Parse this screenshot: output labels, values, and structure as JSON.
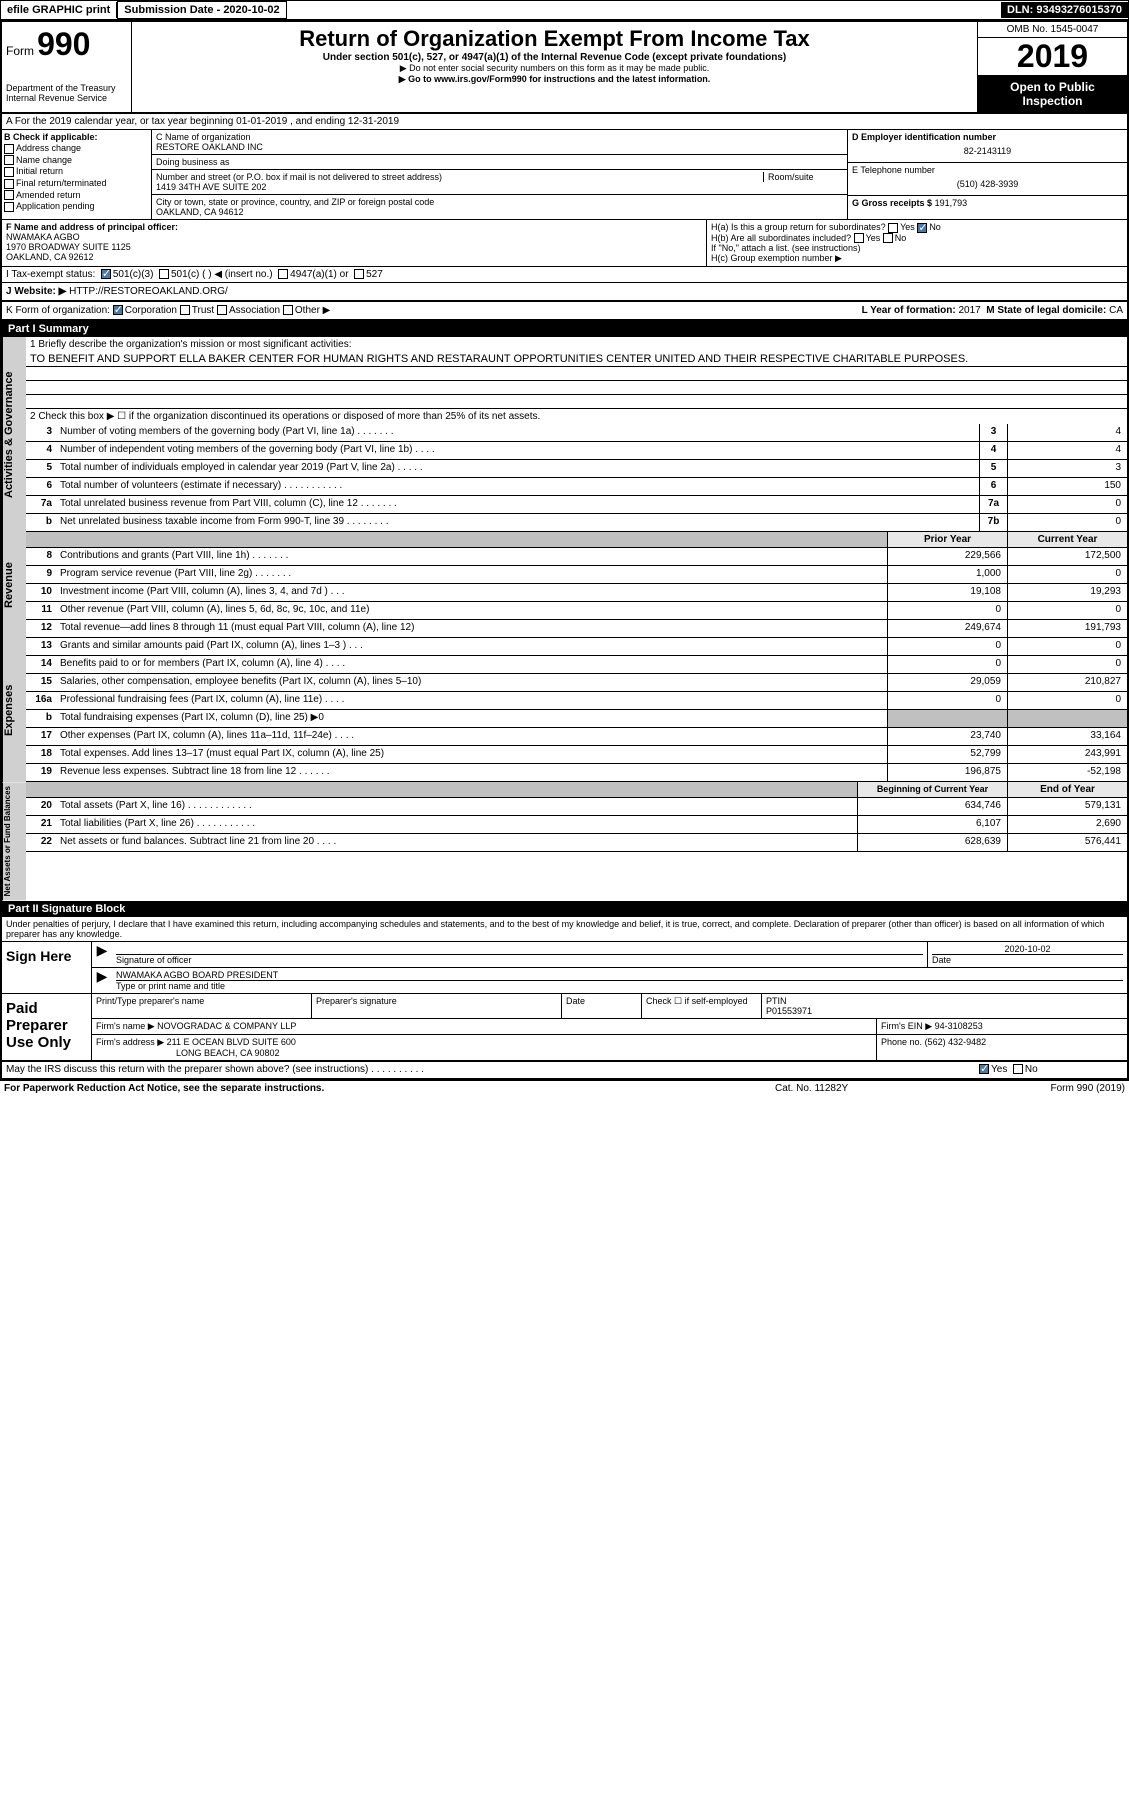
{
  "top": {
    "efile": "efile GRAPHIC print",
    "sub_label": "Submission Date - 2020-10-02",
    "dln": "DLN: 93493276015370"
  },
  "header": {
    "form_label": "Form",
    "form_num": "990",
    "dept": "Department of the Treasury\nInternal Revenue Service",
    "title": "Return of Organization Exempt From Income Tax",
    "sub1": "Under section 501(c), 527, or 4947(a)(1) of the Internal Revenue Code (except private foundations)",
    "sub2": "▶ Do not enter social security numbers on this form as it may be made public.",
    "sub3": "▶ Go to www.irs.gov/Form990 for instructions and the latest information.",
    "omb": "OMB No. 1545-0047",
    "year": "2019",
    "open": "Open to Public Inspection"
  },
  "line_a": "A For the 2019 calendar year, or tax year beginning 01-01-2019    , and ending 12-31-2019",
  "b": {
    "label": "B Check if applicable:",
    "items": [
      "Address change",
      "Name change",
      "Initial return",
      "Final return/terminated",
      "Amended return",
      "Application pending"
    ]
  },
  "c": {
    "name_label": "C Name of organization",
    "name": "RESTORE OAKLAND INC",
    "dba_label": "Doing business as",
    "dba": "",
    "addr_label": "Number and street (or P.O. box if mail is not delivered to street address)",
    "room_label": "Room/suite",
    "addr": "1419 34TH AVE SUITE 202",
    "city_label": "City or town, state or province, country, and ZIP or foreign postal code",
    "city": "OAKLAND, CA  94612"
  },
  "d": {
    "label": "D Employer identification number",
    "val": "82-2143119"
  },
  "e": {
    "label": "E Telephone number",
    "val": "(510) 428-3939"
  },
  "g": {
    "label": "G Gross receipts $",
    "val": "191,793"
  },
  "f": {
    "label": "F  Name and address of principal officer:",
    "name": "NWAMAKA AGBO",
    "addr": "1970 BROADWAY SUITE 1125\nOAKLAND, CA  92612"
  },
  "h": {
    "a": "H(a)  Is this a group return for subordinates?",
    "a_yes": "Yes",
    "a_no": "No",
    "b": "H(b)  Are all subordinates included?",
    "b_note": "If \"No,\" attach a list. (see instructions)",
    "c": "H(c)  Group exemption number ▶"
  },
  "i": {
    "label": "I    Tax-exempt status:",
    "opts": [
      "501(c)(3)",
      "501(c) (  ) ◀ (insert no.)",
      "4947(a)(1) or",
      "527"
    ]
  },
  "j": {
    "label": "J    Website: ▶",
    "val": "HTTP://RESTOREOAKLAND.ORG/"
  },
  "k": {
    "label": "K Form of organization:",
    "opts": [
      "Corporation",
      "Trust",
      "Association",
      "Other ▶"
    ]
  },
  "l": {
    "label": "L Year of formation:",
    "val": "2017"
  },
  "m": {
    "label": "M State of legal domicile:",
    "val": "CA"
  },
  "part1": {
    "header": "Part I      Summary",
    "q1": "1  Briefly describe the organization's mission or most significant activities:",
    "mission": "TO BENEFIT AND SUPPORT ELLA BAKER CENTER FOR HUMAN RIGHTS AND RESTARAUNT OPPORTUNITIES CENTER UNITED AND THEIR RESPECTIVE CHARITABLE PURPOSES.",
    "q2": "2  Check this box ▶ ☐  if the organization discontinued its operations or disposed of more than 25% of its net assets.",
    "side_labels": {
      "gov": "Activities & Governance",
      "rev": "Revenue",
      "exp": "Expenses",
      "net": "Net Assets or Fund Balances"
    },
    "gov_lines": [
      {
        "n": "3",
        "t": "Number of voting members of the governing body (Part VI, line 1a)  .    .    .    .    .    .    .",
        "b": "3",
        "v": "4"
      },
      {
        "n": "4",
        "t": "Number of independent voting members of the governing body (Part VI, line 1b)  .    .    .    .",
        "b": "4",
        "v": "4"
      },
      {
        "n": "5",
        "t": "Total number of individuals employed in calendar year 2019 (Part V, line 2a)  .    .    .    .    .",
        "b": "5",
        "v": "3"
      },
      {
        "n": "6",
        "t": "Total number of volunteers (estimate if necessary)   .    .    .    .    .    .    .    .    .    .    .",
        "b": "6",
        "v": "150"
      },
      {
        "n": "7a",
        "t": "Total unrelated business revenue from Part VIII, column (C), line 12   .    .    .    .    .    .    .",
        "b": "7a",
        "v": "0"
      },
      {
        "n": "b",
        "t": "Net unrelated business taxable income from Form 990-T, line 39  .    .    .    .    .    .    .    .",
        "b": "7b",
        "v": "0"
      }
    ],
    "col_prior": "Prior Year",
    "col_current": "Current Year",
    "rev_lines": [
      {
        "n": "8",
        "t": "Contributions and grants (Part VIII, line 1h)  .    .    .    .    .    .    .",
        "p": "229,566",
        "c": "172,500"
      },
      {
        "n": "9",
        "t": "Program service revenue (Part VIII, line 2g)   .    .    .    .    .    .    .",
        "p": "1,000",
        "c": "0"
      },
      {
        "n": "10",
        "t": "Investment income (Part VIII, column (A), lines 3, 4, and 7d )  .    .    .",
        "p": "19,108",
        "c": "19,293"
      },
      {
        "n": "11",
        "t": "Other revenue (Part VIII, column (A), lines 5, 6d, 8c, 9c, 10c, and 11e)",
        "p": "0",
        "c": "0"
      },
      {
        "n": "12",
        "t": "Total revenue—add lines 8 through 11 (must equal Part VIII, column (A), line 12)",
        "p": "249,674",
        "c": "191,793"
      }
    ],
    "exp_lines": [
      {
        "n": "13",
        "t": "Grants and similar amounts paid (Part IX, column (A), lines 1–3 )  .    .    .",
        "p": "0",
        "c": "0"
      },
      {
        "n": "14",
        "t": "Benefits paid to or for members (Part IX, column (A), line 4)  .    .    .    .",
        "p": "0",
        "c": "0"
      },
      {
        "n": "15",
        "t": "Salaries, other compensation, employee benefits (Part IX, column (A), lines 5–10)",
        "p": "29,059",
        "c": "210,827"
      },
      {
        "n": "16a",
        "t": "Professional fundraising fees (Part IX, column (A), line 11e)  .    .    .    .",
        "p": "0",
        "c": "0"
      },
      {
        "n": "b",
        "t": "Total fundraising expenses (Part IX, column (D), line 25) ▶0",
        "p": "",
        "c": "",
        "shaded": true
      },
      {
        "n": "17",
        "t": "Other expenses (Part IX, column (A), lines 11a–11d, 11f–24e)  .    .    .    .",
        "p": "23,740",
        "c": "33,164"
      },
      {
        "n": "18",
        "t": "Total expenses. Add lines 13–17 (must equal Part IX, column (A), line 25)",
        "p": "52,799",
        "c": "243,991"
      },
      {
        "n": "19",
        "t": "Revenue less expenses. Subtract line 18 from line 12  .    .    .    .    .    .",
        "p": "196,875",
        "c": "-52,198"
      }
    ],
    "col_begin": "Beginning of Current Year",
    "col_end": "End of Year",
    "net_lines": [
      {
        "n": "20",
        "t": "Total assets (Part X, line 16)  .    .    .    .    .    .    .    .    .    .    .    .",
        "p": "634,746",
        "c": "579,131"
      },
      {
        "n": "21",
        "t": "Total liabilities (Part X, line 26)  .    .    .    .    .    .    .    .    .    .    .",
        "p": "6,107",
        "c": "2,690"
      },
      {
        "n": "22",
        "t": "Net assets or fund balances. Subtract line 21 from line 20  .    .    .    .",
        "p": "628,639",
        "c": "576,441"
      }
    ]
  },
  "part2": {
    "header": "Part II      Signature Block",
    "intro": "Under penalties of perjury, I declare that I have examined this return, including accompanying schedules and statements, and to the best of my knowledge and belief, it is true, correct, and complete. Declaration of preparer (other than officer) is based on all information of which preparer has any knowledge.",
    "sign_here": "Sign Here",
    "sig_officer": "Signature of officer",
    "sig_date": "2020-10-02",
    "sig_date_label": "Date",
    "name_title": "NWAMAKA AGBO  BOARD PRESIDENT",
    "name_title_label": "Type or print name and title",
    "paid": "Paid Preparer Use Only",
    "prep_name_label": "Print/Type preparer's name",
    "prep_sig_label": "Preparer's signature",
    "prep_date_label": "Date",
    "check_self": "Check ☐ if self-employed",
    "ptin_label": "PTIN",
    "ptin": "P01553971",
    "firm_name_label": "Firm's name     ▶",
    "firm_name": "NOVOGRADAC & COMPANY LLP",
    "firm_ein_label": "Firm's EIN ▶",
    "firm_ein": "94-3108253",
    "firm_addr_label": "Firm's address ▶",
    "firm_addr": "211 E OCEAN BLVD SUITE 600",
    "firm_addr2": "LONG BEACH, CA  90802",
    "phone_label": "Phone no.",
    "phone": "(562) 432-9482",
    "discuss": "May the IRS discuss this return with the preparer shown above? (see instructions)  .    .    .    .    .    .    .    .    .    .",
    "discuss_yes": "Yes",
    "discuss_no": "No"
  },
  "footer": {
    "left": "For Paperwork Reduction Act Notice, see the separate instructions.",
    "mid": "Cat. No. 11282Y",
    "right": "Form 990 (2019)"
  },
  "colors": {
    "black": "#000000",
    "white": "#ffffff",
    "shade": "#c0c0c0",
    "side": "#d0d0d0",
    "check": "#4a7ba6",
    "head_bg": "#e8e8e8"
  }
}
